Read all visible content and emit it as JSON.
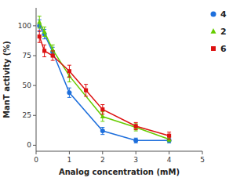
{
  "chart_data": {
    "type": "line",
    "xlabel": "Analog concentration (mM)",
    "ylabel": "ManT activity (%)",
    "xlim": [
      0,
      5
    ],
    "ylim": [
      -5,
      115
    ],
    "xticks": [
      0,
      1,
      2,
      3,
      4,
      5
    ],
    "yticks": [
      0,
      25,
      50,
      75,
      100
    ],
    "grid": false,
    "legend": "right",
    "series": [
      {
        "name": "4",
        "color": "#1e6fdc",
        "marker": "circle",
        "line_style": "solid",
        "x": [
          0.1,
          0.25,
          0.5,
          1.0,
          2.0,
          3.0,
          4.0
        ],
        "values": [
          100,
          93,
          78,
          44,
          12,
          4,
          4
        ],
        "errors": [
          5,
          4,
          4,
          4,
          3,
          2,
          2
        ]
      },
      {
        "name": "2",
        "color": "#66cc00",
        "marker": "triangle",
        "line_style": "solid",
        "x": [
          0.1,
          0.25,
          0.5,
          1.0,
          2.0,
          3.0,
          4.0
        ],
        "values": [
          103,
          95,
          80,
          58,
          24,
          15,
          5
        ],
        "errors": [
          5,
          4,
          4,
          5,
          4,
          3,
          2
        ]
      },
      {
        "name": "6",
        "color": "#dd1111",
        "marker": "square",
        "line_style": "solid",
        "x": [
          0.1,
          0.25,
          0.5,
          1.0,
          1.5,
          2.0,
          3.0,
          4.0
        ],
        "values": [
          91,
          79,
          75,
          62,
          46,
          30,
          16,
          8
        ],
        "errors": [
          5,
          5,
          4,
          5,
          5,
          4,
          3,
          3
        ]
      }
    ]
  }
}
